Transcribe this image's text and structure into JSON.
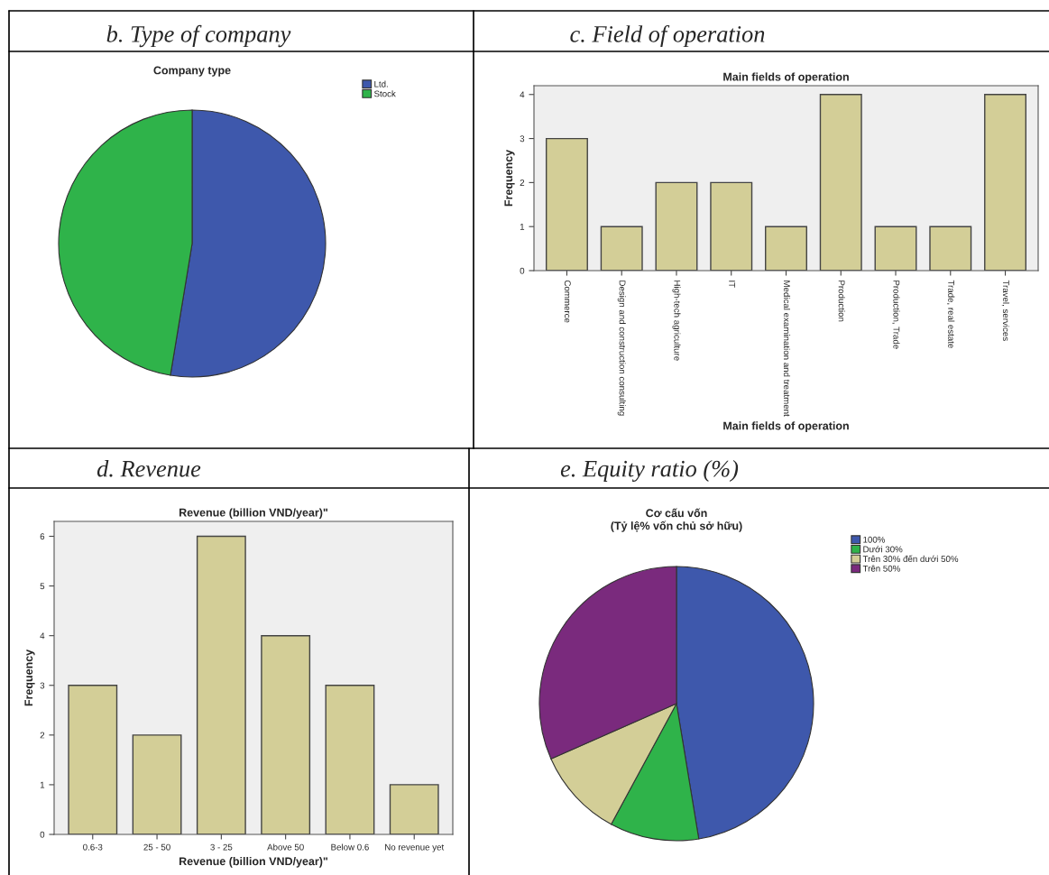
{
  "chart_data": [
    {
      "type": "pie",
      "title": "b. Type of company",
      "subtitle": "Company type",
      "categories": [
        "Ltd.",
        "Stock"
      ],
      "values": [
        52.6,
        47.4
      ],
      "colors": [
        "#3e58ac",
        "#2fb34a"
      ],
      "legend": "top right"
    },
    {
      "type": "bar",
      "title": "c. Field of operation",
      "subtitle": "Main fields of operation",
      "xlabel": "Main fields of operation",
      "ylabel": "Frequency",
      "categories": [
        "Commerce",
        "Design and construction consulting",
        "High-tech agriculture",
        "IT",
        "Medical examination and treatment",
        "Production",
        "Production, Trade",
        "Trade, real estate",
        "Travel, services"
      ],
      "values": [
        3,
        1,
        2,
        2,
        1,
        4,
        1,
        1,
        4
      ],
      "color": "#d3ce97",
      "ylim": [
        0,
        4.2
      ],
      "yticks": [
        0,
        1,
        2,
        3,
        4
      ]
    },
    {
      "type": "bar",
      "title": "d. Revenue",
      "subtitle": "Revenue (billion VND/year)\"",
      "xlabel": "Revenue (billion VND/year)\"",
      "ylabel": "Frequency",
      "categories": [
        "0.6-3",
        "25 - 50",
        "3 - 25",
        "Above 50",
        "Below 0.6",
        "No revenue yet"
      ],
      "values": [
        3,
        2,
        6,
        4,
        3,
        1
      ],
      "color": "#d3ce97",
      "ylim": [
        0,
        6.3
      ],
      "yticks": [
        0,
        1,
        2,
        3,
        4,
        5,
        6
      ]
    },
    {
      "type": "pie",
      "title": "e. Equity ratio (%)",
      "subtitle": "Cơ cấu vốn\n(Tỷ lệ% vốn chủ sở hữu)",
      "categories": [
        "100%",
        "Dưới 30%",
        "Trên 30% đến dưới 50%",
        "Trên 50%"
      ],
      "values": [
        47.4,
        10.5,
        10.5,
        31.6
      ],
      "colors": [
        "#3e58ac",
        "#2fb34a",
        "#d3ce97",
        "#7a2a7d"
      ],
      "legend": "top right"
    }
  ]
}
